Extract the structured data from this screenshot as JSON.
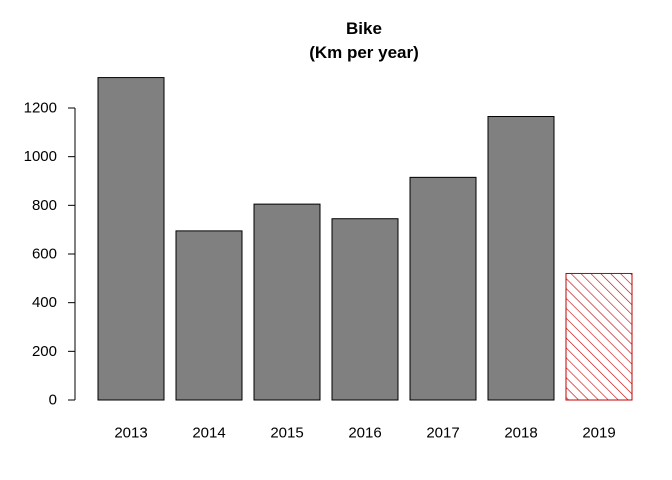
{
  "chart_data": {
    "type": "bar",
    "title": [
      "Bike",
      "(Km per year)"
    ],
    "xlabel": "",
    "ylabel": "",
    "categories": [
      "2013",
      "2014",
      "2015",
      "2016",
      "2017",
      "2018",
      "2019"
    ],
    "values": [
      1325,
      695,
      805,
      745,
      915,
      1165,
      520
    ],
    "ylim": [
      0,
      1300
    ],
    "yticks": [
      0,
      200,
      400,
      600,
      800,
      1000,
      1200
    ],
    "grid": false,
    "colors": {
      "bar_fill": "#808080",
      "bar_border": "#000000",
      "highlight_hatch": "#c00000"
    },
    "highlight_index": 6,
    "highlight_style": "hatched"
  }
}
